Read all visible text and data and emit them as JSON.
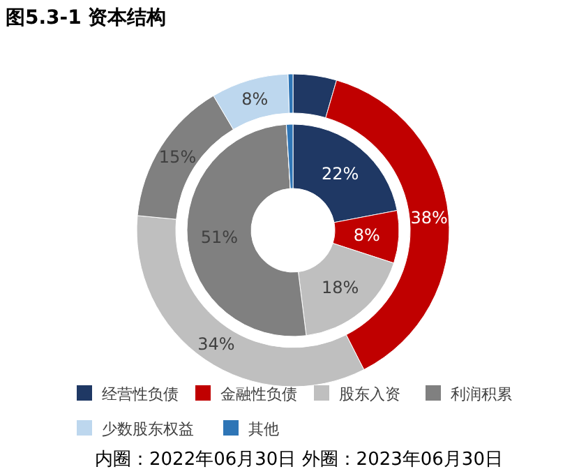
{
  "chart_data": {
    "type": "donut",
    "title": "图5.3-1 资本结构",
    "categories": [
      "经营性负债",
      "金融性负债",
      "股东入资",
      "利润积累",
      "少数股东权益",
      "其他"
    ],
    "colors": [
      "#1f3864",
      "#c00000",
      "#bfbfbf",
      "#808080",
      "#bdd7ee",
      "#2e75b6"
    ],
    "series": [
      {
        "values": [
          22,
          8,
          18,
          51,
          0,
          1
        ],
        "value_labels": [
          "22%",
          "8%",
          "18%",
          "51%",
          null,
          null
        ]
      },
      {
        "values": [
          4.5,
          38,
          34,
          15,
          8,
          0.5
        ],
        "value_labels": [
          null,
          "38%",
          "34%",
          "15%",
          "8%",
          null
        ]
      }
    ],
    "legend": "bottom",
    "annotations": [
      "内圈：2022年06月30日 外圈：2023年06月30日"
    ]
  }
}
